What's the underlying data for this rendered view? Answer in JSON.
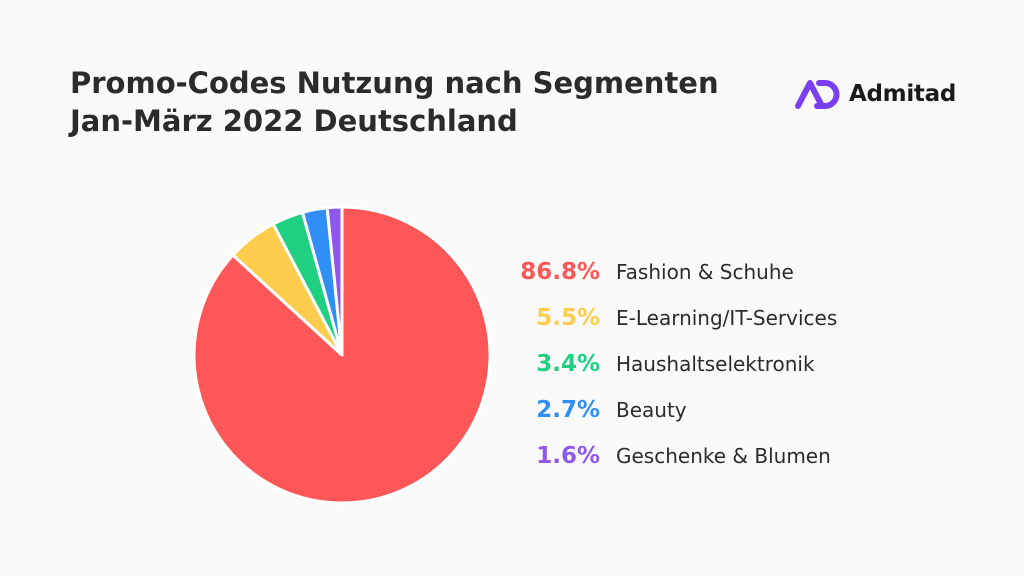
{
  "header": {
    "title_line1": "Promo-Codes Nutzung nach Segmenten",
    "title_line2": "Jan-März 2022 Deutschland"
  },
  "brand": {
    "name": "Admitad",
    "logo_icon": "admitad-ad-logo-icon",
    "logo_color": "#7b3ff2"
  },
  "chart_data": {
    "type": "pie",
    "start_angle_deg": 0,
    "direction": "clockwise",
    "slices": [
      {
        "label": "Fashion & Schuhe",
        "value": 86.8,
        "display": "86.8%",
        "color": "#ff5757"
      },
      {
        "label": "E-Learning/IT-Services",
        "value": 5.5,
        "display": "5.5%",
        "color": "#ffcc4d"
      },
      {
        "label": "Haushaltselektronik",
        "value": 3.4,
        "display": "3.4%",
        "color": "#1ed07f"
      },
      {
        "label": "Beauty",
        "value": 2.7,
        "display": "2.7%",
        "color": "#2f8ff5"
      },
      {
        "label": "Geschenke & Blumen",
        "value": 1.6,
        "display": "1.6%",
        "color": "#8f58ec"
      }
    ],
    "legend_position": "right"
  }
}
